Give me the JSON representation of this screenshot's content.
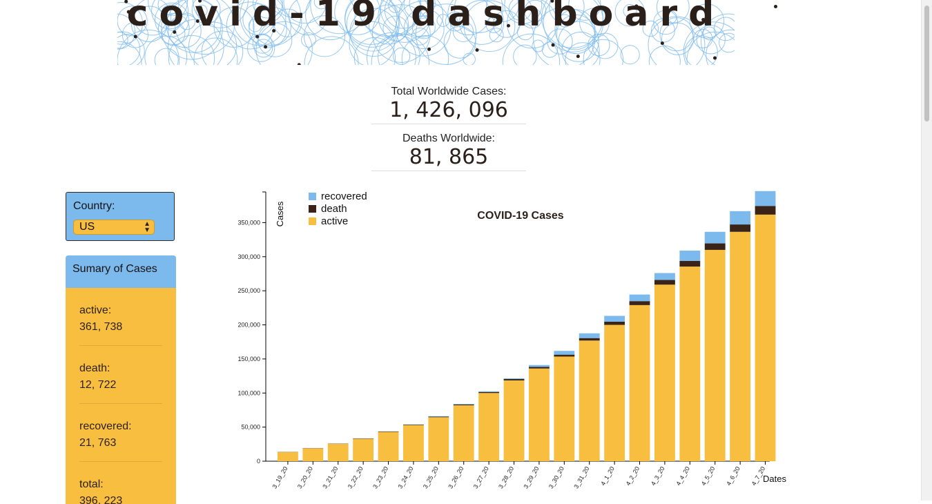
{
  "header": {
    "title": "covid-19 dashboard"
  },
  "stats": [
    {
      "label": "Total Worldwide Cases:",
      "value": "1, 426, 096"
    },
    {
      "label": "Deaths Worldwide:",
      "value": "81, 865"
    }
  ],
  "country": {
    "label": "Country:",
    "selected": "US"
  },
  "summary": {
    "heading": "Sumary of Cases",
    "items": [
      {
        "key": "active:",
        "value": "361, 738"
      },
      {
        "key": "death:",
        "value": "12, 722"
      },
      {
        "key": "recovered:",
        "value": "21, 763"
      },
      {
        "key": "total:",
        "value": "396, 223"
      }
    ]
  },
  "colors": {
    "active": "#f7be3f",
    "death": "#3a2418",
    "recovered": "#7cbaee",
    "dark": "#2b1f1a"
  },
  "chart_data": {
    "type": "bar",
    "stacked": true,
    "title": "COVID-19 Cases",
    "xlabel": "Dates",
    "ylabel": "Cases",
    "ylim": [
      0,
      395000
    ],
    "yticks": [
      0,
      50000,
      100000,
      150000,
      200000,
      250000,
      300000,
      350000
    ],
    "ytick_labels": [
      "0",
      "50,000",
      "100,000",
      "150,000",
      "200,000",
      "250,000",
      "300,000",
      "350,000"
    ],
    "legend_position": "top-left",
    "categories": [
      "3_19_20",
      "3_20_20",
      "3_21_20",
      "3_22_20",
      "3_23_20",
      "3_24_20",
      "3_25_20",
      "3_26_20",
      "3_27_20",
      "3_28_20",
      "3_29_20",
      "3_30_20",
      "3_31_20",
      "4_1_20",
      "4_2_20",
      "4_3_20",
      "4_4_20",
      "4_5_20",
      "4_6_20",
      "4_7_20"
    ],
    "series": [
      {
        "name": "active",
        "values": [
          13500,
          19000,
          25500,
          33000,
          43000,
          53000,
          64500,
          82000,
          100000,
          118500,
          136000,
          153500,
          177000,
          200000,
          229000,
          259000,
          285500,
          310000,
          336500,
          361738
        ]
      },
      {
        "name": "death",
        "values": [
          200,
          250,
          300,
          420,
          550,
          700,
          940,
          1200,
          1580,
          2000,
          2400,
          2800,
          3600,
          4700,
          5800,
          7000,
          8400,
          9500,
          10800,
          12722
        ]
      },
      {
        "name": "recovered",
        "values": [
          100,
          150,
          170,
          180,
          230,
          350,
          620,
          870,
          900,
          1000,
          2660,
          5500,
          7000,
          8500,
          9700,
          10000,
          15000,
          17000,
          19500,
          21763
        ]
      }
    ]
  }
}
